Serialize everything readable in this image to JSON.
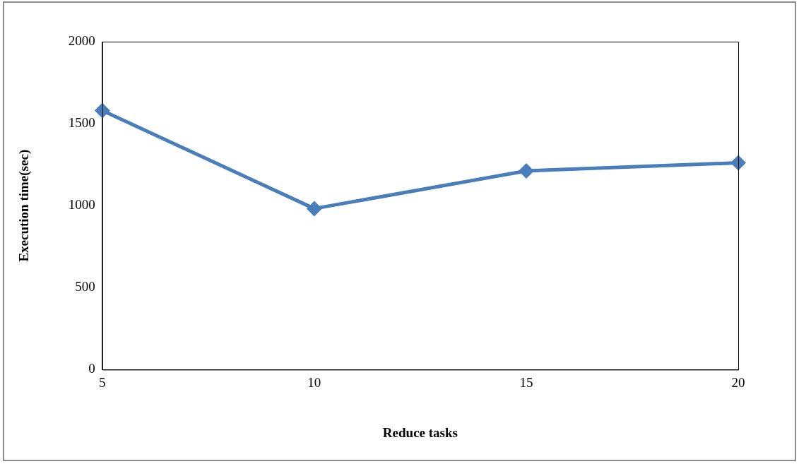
{
  "chart_data": {
    "type": "line",
    "xlabel": "Reduce tasks",
    "ylabel": "Execution time(sec)",
    "x": [
      5,
      10,
      15,
      20
    ],
    "series": [
      {
        "color": "#4a7ebb",
        "values": [
          1580,
          982,
          1212,
          1261
        ]
      }
    ],
    "xlim": [
      5,
      20
    ],
    "xticks": [
      5,
      10,
      15,
      20
    ],
    "ylim": [
      0,
      2000
    ],
    "yticks": [
      0,
      500,
      1000,
      1500,
      2000
    ],
    "grid": false,
    "legend": false,
    "marker": "diamond",
    "line_style": "solid"
  }
}
